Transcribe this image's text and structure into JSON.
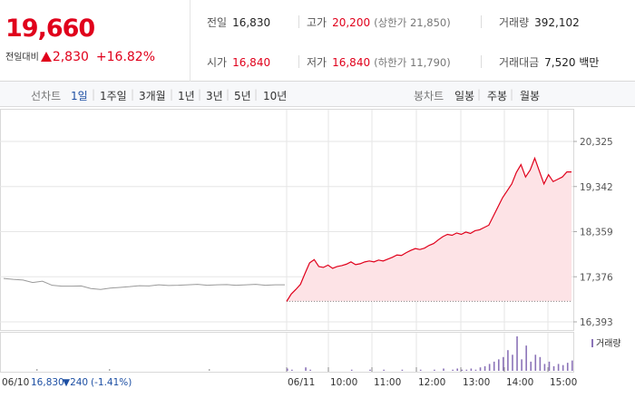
{
  "header": {
    "price": "19,660",
    "change_label": "전일대비",
    "change_value": "2,830",
    "change_pct": "+16.82%",
    "prev_close_label": "전일",
    "prev_close": "16,830",
    "high_label": "고가",
    "high": "20,200",
    "upper_limit": "(상한가 21,850)",
    "volume_label": "거래량",
    "volume": "392,102",
    "open_label": "시가",
    "open": "16,840",
    "low_label": "저가",
    "low": "16,840",
    "lower_limit": "(하한가 11,790)",
    "amount_label": "거래대금",
    "amount": "7,520 백만"
  },
  "toolbar": {
    "line_label": "선차트",
    "periods": [
      "1일",
      "1주일",
      "3개월",
      "1년",
      "3년",
      "5년",
      "10년"
    ],
    "candle_label": "봉차트",
    "candles": [
      "일봉",
      "주봉",
      "월봉"
    ]
  },
  "colors": {
    "up": "#e0001b",
    "down": "#1d4fa3",
    "grid": "#e6e6e6",
    "fill": "#fde3e6",
    "volume": "#8b73b8"
  },
  "chart_data": {
    "type": "line",
    "y_ticks": [
      "20,325",
      "19,342",
      "18,359",
      "17,376",
      "16,393"
    ],
    "ylim": [
      16393,
      20325
    ],
    "x_ticks": [
      "06/11",
      "10:00",
      "11:00",
      "12:00",
      "13:00",
      "14:00",
      "15:00"
    ],
    "prev_day": {
      "date": "06/10",
      "close": "16,830",
      "change": "▼240",
      "pct": "(-1.41%)"
    },
    "volume_label": "거래량",
    "prev_session": [
      17340,
      17320,
      17305,
      17250,
      17280,
      17190,
      17170,
      17170,
      17175,
      17120,
      17100,
      17130,
      17145,
      17160,
      17180,
      17175,
      17200,
      17185,
      17190,
      17200,
      17210,
      17190,
      17200,
      17205,
      17190,
      17200,
      17210,
      17190,
      17200,
      17200
    ],
    "session": [
      16840,
      17000,
      17100,
      17210,
      17450,
      17680,
      17750,
      17600,
      17580,
      17630,
      17560,
      17600,
      17620,
      17650,
      17700,
      17640,
      17660,
      17700,
      17720,
      17700,
      17740,
      17720,
      17760,
      17800,
      17850,
      17840,
      17900,
      17950,
      17990,
      17970,
      18000,
      18060,
      18100,
      18180,
      18250,
      18300,
      18280,
      18330,
      18300,
      18350,
      18320,
      18380,
      18400,
      18450,
      18500,
      18700,
      18900,
      19100,
      19250,
      19400,
      19650,
      19820,
      19550,
      19700,
      19960,
      19680,
      19400,
      19600,
      19450,
      19500,
      19550,
      19660,
      19660
    ],
    "volume": [
      2,
      1,
      0,
      0,
      3,
      1,
      0,
      0,
      0,
      0,
      0,
      0,
      0,
      0,
      1,
      0,
      0,
      0,
      1,
      0,
      0,
      1,
      0,
      0,
      0,
      1,
      0,
      0,
      0,
      1,
      0,
      0,
      1,
      0,
      2,
      0,
      1,
      2,
      1,
      1,
      2,
      1,
      3,
      4,
      6,
      8,
      10,
      12,
      18,
      14,
      30,
      10,
      22,
      8,
      14,
      12,
      6,
      8,
      4,
      6,
      5,
      7,
      9
    ]
  }
}
